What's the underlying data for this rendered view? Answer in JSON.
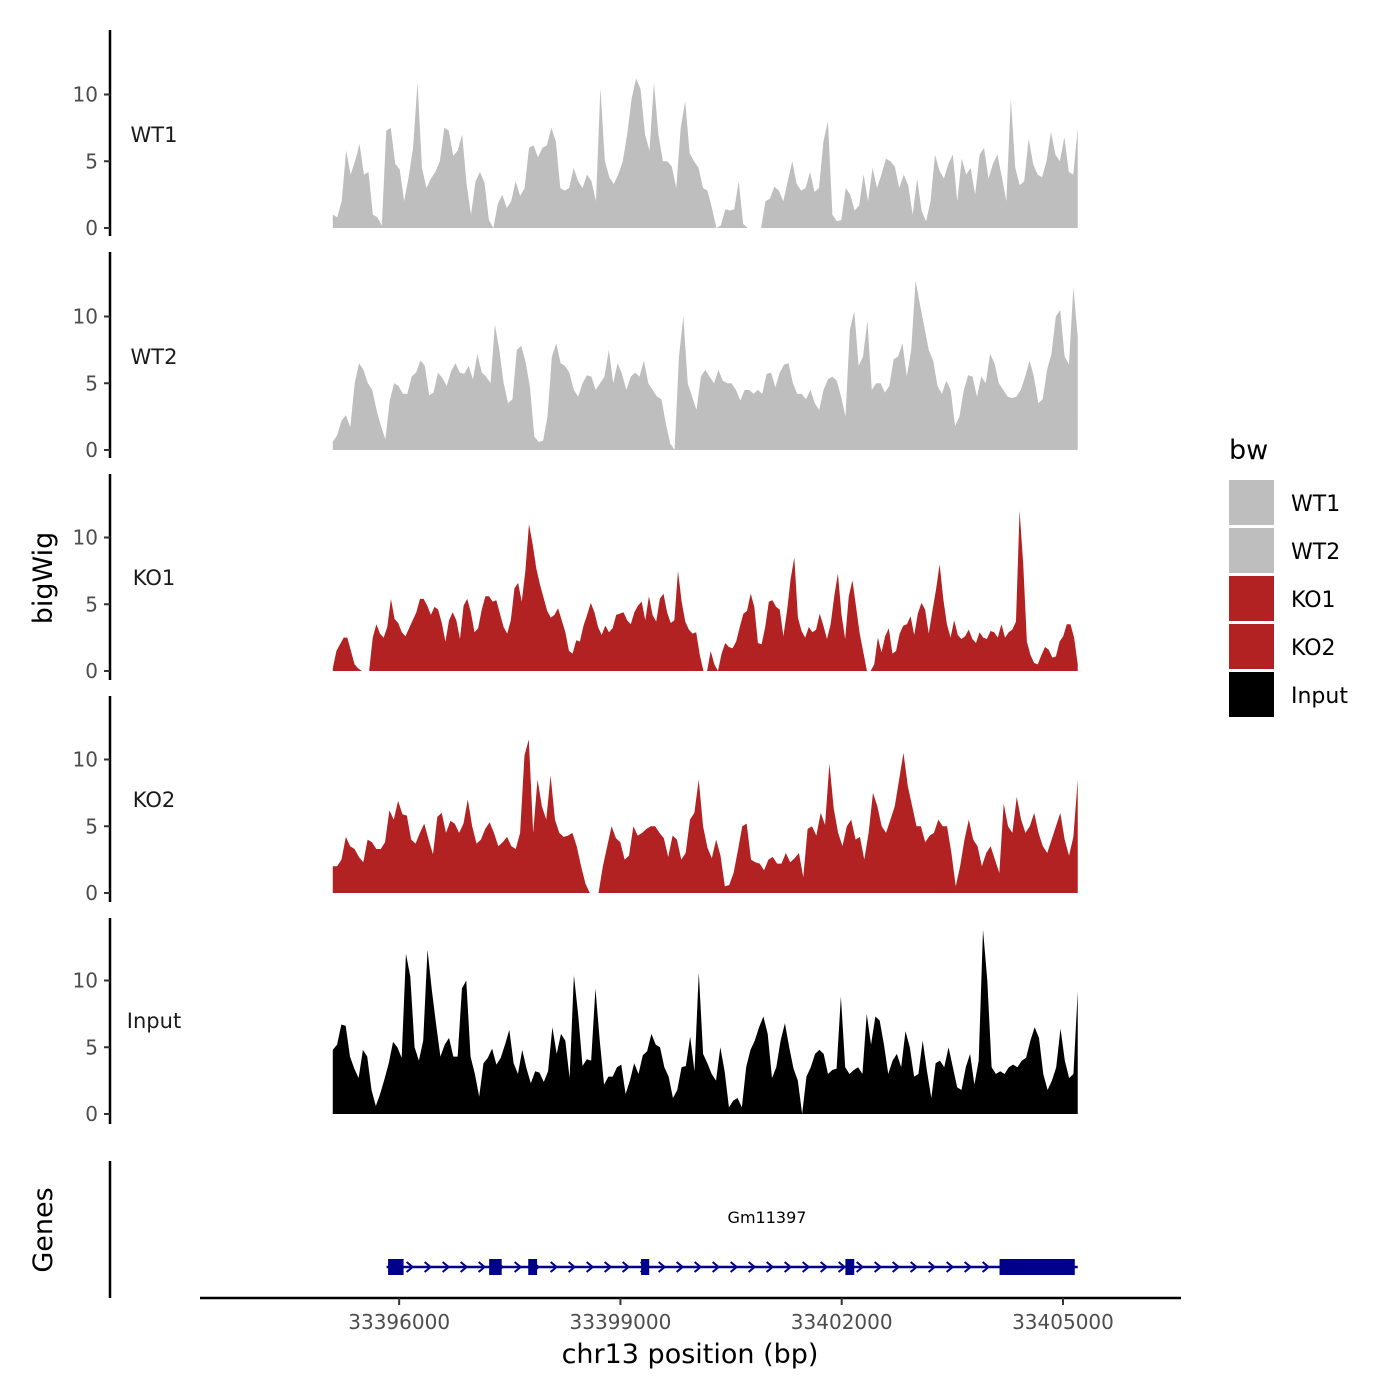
{
  "chart_data": {
    "type": "area",
    "chromosome": "chr13",
    "xlabel": "chr13 position (bp)",
    "ylabel": "bigWig",
    "genes_label": "Genes",
    "xlim": [
      33393300,
      33406600
    ],
    "track_xlim": [
      33395100,
      33405200
    ],
    "xticks": [
      33396000,
      33399000,
      33402000,
      33405000
    ],
    "xtick_labels": [
      "33396000",
      "33399000",
      "33402000",
      "33405000"
    ],
    "ylim": [
      0,
      14.5
    ],
    "yticks": [
      0,
      5,
      10
    ],
    "ytick_labels": [
      "0",
      "5",
      "10"
    ],
    "legend": {
      "title": "bw",
      "entries": [
        {
          "label": "WT1",
          "color": "#bebebe"
        },
        {
          "label": "WT2",
          "color": "#bebebe"
        },
        {
          "label": "KO1",
          "color": "#b22222"
        },
        {
          "label": "KO2",
          "color": "#b22222"
        },
        {
          "label": "Input",
          "color": "#000000"
        }
      ]
    },
    "series": [
      {
        "name": "WT1",
        "color": "#bebebe",
        "values": [
          1,
          0.8,
          2,
          5.8,
          4,
          5,
          6.3,
          4,
          4.2,
          1,
          0.8,
          0.2,
          7.3,
          7.5,
          4.8,
          4.4,
          2,
          3.8,
          6,
          10.9,
          4.5,
          3,
          3.7,
          4.2,
          5,
          7.5,
          7.3,
          5.4,
          5.8,
          7,
          3.3,
          1,
          3.5,
          4.2,
          3.4,
          0.6,
          0,
          1.8,
          2.5,
          1.5,
          2,
          3.5,
          2.4,
          3,
          6,
          6.2,
          5.3,
          6,
          6.2,
          7.5,
          6.5,
          3,
          2.8,
          3,
          4.5,
          3.5,
          3,
          4,
          3.5,
          2,
          10.5,
          5,
          3.8,
          3.3,
          4,
          5,
          7,
          9.7,
          11.2,
          10.4,
          7,
          5.8,
          10.9,
          7,
          5,
          5,
          4.6,
          3,
          7.5,
          9.5,
          5.6,
          5,
          4.5,
          3,
          2.8,
          1.5,
          0,
          0.2,
          1.4,
          1.3,
          1.4,
          3.5,
          0.3,
          0,
          0,
          0,
          0,
          2,
          2.2,
          3.1,
          2.8,
          2,
          3.5,
          5,
          3.3,
          2.8,
          3,
          4.2,
          2.7,
          3,
          6.5,
          8,
          1,
          0.5,
          0.6,
          3,
          2.5,
          1.3,
          1.7,
          4,
          2,
          4.5,
          3,
          4,
          5.2,
          5,
          4.6,
          3,
          4,
          3.2,
          1,
          3.7,
          1.3,
          0.5,
          2,
          5.5,
          4.3,
          3.7,
          4.8,
          5.5,
          2,
          5.2,
          4,
          4.5,
          2.5,
          5.5,
          6,
          3.7,
          4.8,
          5.5,
          3.8,
          2,
          9.7,
          4.5,
          3.2,
          3.5,
          6.7,
          4.8,
          4,
          3.8,
          5,
          7.2,
          5.5,
          5,
          6.8,
          4.2,
          4,
          7.5
        ]
      },
      {
        "name": "WT2",
        "color": "#bebebe",
        "values": [
          0.6,
          1.1,
          2.2,
          2.6,
          1.7,
          5,
          6.5,
          6,
          5,
          4.5,
          3,
          1.8,
          0.8,
          3.7,
          5,
          4.8,
          4.2,
          4.2,
          5.5,
          5.8,
          6.7,
          6.3,
          4.1,
          4.3,
          5.8,
          5.4,
          4.8,
          5.9,
          6.5,
          5.8,
          5.7,
          6.3,
          5.3,
          7.2,
          5.8,
          5.5,
          5,
          9.4,
          7.5,
          5,
          3.5,
          3.8,
          7.5,
          7.8,
          6.6,
          4.7,
          1,
          0.6,
          0.7,
          2.5,
          7,
          8,
          6.5,
          6.3,
          5.8,
          4.5,
          4,
          5,
          5.6,
          5.5,
          4.5,
          5,
          5.5,
          7.5,
          5,
          6.5,
          5.7,
          4.5,
          5.5,
          5.8,
          5.5,
          6.7,
          5,
          4.5,
          4,
          3.8,
          2,
          0.5,
          0,
          7,
          10,
          5,
          4,
          3,
          5.5,
          6,
          5.5,
          5,
          6,
          5.2,
          5,
          5,
          4.5,
          3.7,
          4.5,
          4.5,
          4.2,
          4.5,
          4.2,
          5.7,
          5.8,
          4.7,
          5.8,
          6.4,
          6.5,
          5,
          4.2,
          4.2,
          3.8,
          4.5,
          3.5,
          3,
          4.5,
          5.3,
          5.5,
          5.2,
          4,
          2.5,
          9,
          10.4,
          6.3,
          7,
          9.7,
          4.5,
          5,
          5,
          4.3,
          4.8,
          6.8,
          7,
          8,
          5.5,
          7.5,
          12.7,
          10.9,
          9.2,
          7.5,
          6.7,
          4.8,
          4.2,
          5.2,
          4.5,
          1.8,
          2.5,
          4.5,
          5.6,
          5.5,
          4,
          5.5,
          5,
          7.2,
          6.5,
          5,
          4.5,
          4,
          3.9,
          4,
          4.5,
          5.5,
          6.7,
          5.5,
          3.5,
          3.8,
          6,
          7.2,
          10,
          10.5,
          7,
          6.4,
          12.2,
          8.5
        ]
      },
      {
        "name": "KO1",
        "color": "#b22222",
        "values": [
          0.2,
          1.5,
          2,
          2.5,
          2.5,
          1.5,
          0.5,
          0.2,
          0,
          0,
          0,
          2.5,
          3.5,
          2.8,
          2.5,
          3.3,
          5.4,
          3.9,
          3.6,
          2.9,
          2.6,
          3.2,
          3.8,
          4.4,
          5.4,
          5.4,
          4.9,
          4.2,
          4.8,
          4.6,
          3.6,
          2.2,
          3.8,
          4.4,
          3.8,
          2.4,
          4.9,
          5.4,
          4.4,
          2.9,
          3.2,
          4.6,
          5.6,
          5.6,
          5.2,
          5.3,
          4.3,
          3.3,
          2.8,
          3.8,
          6.2,
          6.6,
          5.2,
          7.5,
          11,
          9.5,
          7.7,
          6.5,
          5.5,
          4.5,
          4,
          4.2,
          4.7,
          3.8,
          2.9,
          1.5,
          1.3,
          2.3,
          2.2,
          3.4,
          4.2,
          5.1,
          4.4,
          3.3,
          2.7,
          3.4,
          2.9,
          3.2,
          4.2,
          4.3,
          4.4,
          3.8,
          3.5,
          4.4,
          4.9,
          5.2,
          3.8,
          5.6,
          4.2,
          3.7,
          5.4,
          5.8,
          4.4,
          3.6,
          3.8,
          7.5,
          5.2,
          3.7,
          3.1,
          2.8,
          2.9,
          1.2,
          0,
          0,
          1.5,
          0.5,
          0,
          1.3,
          2.1,
          1.8,
          1.7,
          2.2,
          3.3,
          4.3,
          4.5,
          5.8,
          4.8,
          2.1,
          2,
          3.3,
          5.2,
          5.3,
          4.8,
          4.6,
          2.6,
          4.5,
          6.9,
          8.5,
          4,
          3,
          2.5,
          3.3,
          2.9,
          3.1,
          4.3,
          3.4,
          2.4,
          3.5,
          5.6,
          7.3,
          4.2,
          2.4,
          5.6,
          6.8,
          4.8,
          2.8,
          1.4,
          0,
          0,
          0.5,
          2.5,
          1.4,
          2.6,
          3.2,
          1.3,
          1.5,
          2.8,
          3.4,
          3.5,
          4.1,
          2.7,
          4.3,
          5.1,
          4.6,
          2.8,
          4.5,
          6.1,
          8,
          5.4,
          3.5,
          2.5,
          3.8,
          2.7,
          2.4,
          2.6,
          3.1,
          2.4,
          2.1,
          2.9,
          2.5,
          2.4,
          3,
          2.9,
          2.5,
          3.5,
          2.5,
          2.9,
          3.1,
          3.7,
          12,
          8,
          2.2,
          1.2,
          0.6,
          0.5,
          1.2,
          1.8,
          1.6,
          1,
          1.1,
          2.2,
          2.6,
          3.5,
          3.5,
          2.5,
          0.5
        ]
      },
      {
        "name": "KO2",
        "color": "#b22222",
        "values": [
          2,
          2,
          2.5,
          4.2,
          3.5,
          3.3,
          2.7,
          2.3,
          4,
          3.8,
          3.3,
          3.3,
          3.8,
          6.2,
          5.5,
          6.9,
          5.9,
          5.8,
          4,
          3.7,
          4.5,
          5.2,
          4,
          2.9,
          5.7,
          6,
          4.5,
          5.4,
          5.2,
          4.5,
          5.2,
          7,
          5,
          3.7,
          4,
          4.8,
          5.3,
          4.5,
          3.5,
          3.8,
          4.2,
          3.5,
          3.3,
          4.5,
          10.3,
          11.5,
          4.5,
          8.5,
          6.5,
          5.5,
          8.8,
          5.5,
          4.5,
          4.2,
          4.3,
          4.5,
          3.5,
          2,
          0.7,
          0,
          0,
          0,
          2,
          3.5,
          5,
          4.1,
          3.8,
          2.5,
          2.8,
          5,
          4.3,
          4.5,
          4.8,
          5,
          5,
          4.5,
          4.1,
          2.7,
          4.3,
          4,
          2.5,
          3,
          5.5,
          6,
          8.5,
          5,
          3.4,
          2.6,
          4,
          2.8,
          0.5,
          0.6,
          1.5,
          3.2,
          5,
          5.2,
          2.5,
          2.3,
          2.2,
          1.7,
          2.5,
          2.7,
          2.2,
          2.2,
          3,
          2.3,
          2.6,
          3,
          1.2,
          4.8,
          5,
          4.3,
          6,
          5.1,
          9.7,
          6.3,
          4.5,
          3.5,
          5,
          5.5,
          4,
          4.2,
          2.5,
          4.5,
          7.5,
          6.5,
          5,
          4.5,
          5.5,
          6.5,
          8.5,
          10.5,
          8,
          6.5,
          5,
          5,
          3.8,
          4.3,
          4.5,
          5.5,
          5,
          5,
          3,
          0.5,
          2,
          4,
          5.5,
          4,
          3.5,
          2,
          3,
          3.5,
          2.5,
          1.5,
          6.7,
          5,
          4.5,
          7.2,
          5.5,
          4.5,
          5,
          6,
          4.5,
          3.5,
          3,
          4,
          5,
          6,
          4,
          2.8,
          4.2,
          8.5
        ]
      },
      {
        "name": "Input",
        "color": "#000000",
        "values": [
          4.8,
          5.2,
          6.7,
          6.6,
          4.3,
          3.4,
          2.7,
          4.8,
          4.3,
          1.8,
          0.6,
          1.5,
          2.6,
          3.8,
          5.4,
          5,
          4.2,
          12,
          10.3,
          5,
          4,
          5.5,
          12.3,
          9.3,
          6.7,
          4.3,
          5.2,
          5.7,
          4.3,
          4.3,
          9.4,
          10,
          4.3,
          3,
          1.3,
          3.8,
          4.2,
          4.9,
          3.7,
          4.2,
          5.2,
          6.3,
          3.8,
          3,
          4.8,
          3.4,
          2.3,
          3.2,
          3.1,
          2.4,
          3.2,
          6.5,
          4.5,
          6,
          5.5,
          2.7,
          10.4,
          7.4,
          3.6,
          4.1,
          4,
          9.4,
          5.5,
          2.2,
          2.8,
          2.8,
          3.5,
          3.7,
          1.5,
          2.5,
          3.8,
          3,
          4.4,
          4.7,
          6,
          5.2,
          5,
          3.5,
          2.8,
          1.2,
          1.8,
          3.5,
          3.6,
          5.8,
          3.2,
          10.6,
          4.5,
          3.8,
          3,
          2.5,
          5,
          3.2,
          0.5,
          1,
          1.2,
          0.5,
          3.5,
          4.8,
          5.5,
          6.5,
          7.3,
          6,
          2.7,
          3.5,
          5.5,
          6.8,
          5,
          3.4,
          2.5,
          0,
          2.8,
          3.5,
          4.5,
          4.8,
          4.5,
          3,
          3.3,
          3.4,
          8.8,
          3.5,
          3,
          3.3,
          3.5,
          3,
          7.5,
          5.2,
          7.3,
          7,
          5.2,
          3,
          4,
          4.5,
          3.5,
          6.2,
          5,
          2.8,
          3,
          5.5,
          3.2,
          1.2,
          3.8,
          4,
          3.5,
          5,
          3.5,
          2,
          1.8,
          3.5,
          4.5,
          2.2,
          4,
          13.8,
          10,
          3.5,
          3,
          3.2,
          3,
          3.5,
          3.7,
          3.5,
          4,
          4.2,
          5.5,
          6.5,
          5.7,
          3,
          1.8,
          2.5,
          3.5,
          6.4,
          4,
          2.7,
          3,
          9.2
        ]
      }
    ],
    "gene": {
      "name": "Gm11397",
      "color": "#00008b",
      "strand": "+",
      "start": 33395830,
      "end": 33405200,
      "exons": [
        [
          33395850,
          33396060
        ],
        [
          33397220,
          33397390
        ],
        [
          33397750,
          33397870
        ],
        [
          33399280,
          33399390
        ],
        [
          33402050,
          33402170
        ],
        [
          33404140,
          33405160
        ]
      ]
    }
  }
}
